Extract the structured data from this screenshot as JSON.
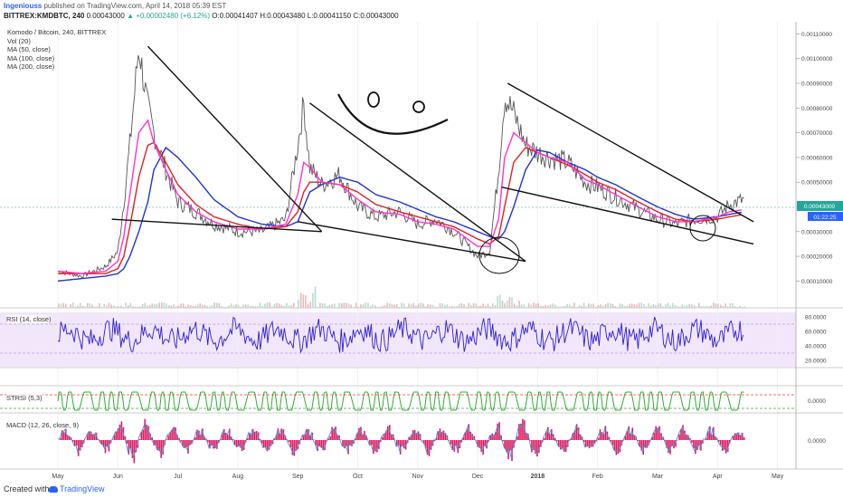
{
  "header": {
    "author": "Ingeniouss",
    "published": "published on TradingView.com, April 14, 2018 05:39 EST",
    "symbol": "BITTREX:KMDBTC, 240",
    "price": "0.00043000",
    "change": "▲ +0.00002480 (+6.12%)",
    "open": "O:0.00041407",
    "high": "H:0.00043480",
    "low": "L:0.00041150",
    "close": "C:0.00043000"
  },
  "footer": {
    "created": "Created with",
    "brand": "TradingView"
  },
  "legend": [
    "Komodo / Bitcoin, 240, BITTREX",
    "Vol (20)",
    "MA (50, close)",
    "MA (100, close)",
    "MA (200, close)"
  ],
  "panes": {
    "rsi": "RSI (14, close)",
    "stoch": "STRSI (5,3)",
    "macd": "MACD (12, 26, close, 9)"
  },
  "price_badges": {
    "last": "0.00043000",
    "timer": "01:22:25"
  },
  "colors": {
    "price": "#555555",
    "ma50": "#ff33cc",
    "ma100": "#dd2222",
    "ma200": "#2233cc",
    "rsi": "#2a1fcf",
    "stoch": "#33aa33",
    "macd_hist": "#e0195e",
    "macd_line": "#4a90d9",
    "badge": "#26a69a",
    "timer": "#2962ff"
  },
  "chart_data": {
    "type": "line",
    "x_labels": [
      "May",
      "Jun",
      "Jul",
      "Aug",
      "Sep",
      "Oct",
      "Nov",
      "Dec",
      "2018",
      "Feb",
      "Mar",
      "Apr",
      "May"
    ],
    "x_label_index": [
      0,
      1,
      2,
      3,
      4,
      5,
      6,
      7,
      8,
      9,
      10,
      11,
      12
    ],
    "price_axis": {
      "ticks": [
        "0.00110000",
        "0.00100000",
        "0.00090000",
        "0.00080000",
        "0.00070000",
        "0.00060000",
        "0.00050000",
        "0.00040000",
        "0.00030000",
        "0.00020000",
        "0.00010000"
      ],
      "range": [
        5e-05,
        0.00112
      ]
    },
    "price_series_month_index": [
      0.0,
      0.4,
      0.8,
      1.0,
      1.1,
      1.2,
      1.35,
      1.5,
      1.6,
      1.8,
      2.0,
      2.3,
      2.6,
      3.0,
      3.4,
      3.8,
      4.0,
      4.1,
      4.2,
      4.4,
      4.7,
      5.0,
      5.3,
      5.7,
      6.0,
      6.3,
      6.6,
      7.0,
      7.2,
      7.35,
      7.45,
      7.6,
      7.8,
      8.0,
      8.2,
      8.5,
      8.8,
      9.0,
      9.3,
      9.6,
      10.0,
      10.3,
      10.6,
      11.0,
      11.2,
      11.45
    ],
    "price_series": [
      0.00014,
      0.00012,
      0.00016,
      0.00022,
      0.00042,
      0.00065,
      0.00105,
      0.0008,
      0.0007,
      0.00055,
      0.00042,
      0.00038,
      0.00033,
      0.0003,
      0.0003,
      0.00035,
      0.00065,
      0.00082,
      0.00056,
      0.00049,
      0.00053,
      0.0004,
      0.00036,
      0.00038,
      0.00033,
      0.00035,
      0.0003,
      0.0002,
      0.00022,
      0.00055,
      0.00085,
      0.00078,
      0.00065,
      0.00062,
      0.0006,
      0.00058,
      0.0005,
      0.00048,
      0.00044,
      0.0004,
      0.00035,
      0.00033,
      0.00035,
      0.00036,
      0.00041,
      0.00043
    ],
    "ma50": [
      0.00014,
      0.00013,
      0.00014,
      0.00018,
      0.00028,
      0.00045,
      0.0007,
      0.00075,
      0.00066,
      0.00055,
      0.00045,
      0.00038,
      0.00034,
      0.00031,
      0.00031,
      0.00033,
      0.00045,
      0.00058,
      0.00056,
      0.0005,
      0.00049,
      0.00043,
      0.00038,
      0.00037,
      0.00034,
      0.00033,
      0.00031,
      0.00024,
      0.00024,
      0.00035,
      0.0006,
      0.0007,
      0.00066,
      0.00062,
      0.0006,
      0.00058,
      0.00051,
      0.00049,
      0.00045,
      0.00041,
      0.00036,
      0.00034,
      0.00034,
      0.00036,
      0.00038,
      0.00039
    ],
    "ma100": [
      0.00013,
      0.00013,
      0.00013,
      0.00015,
      0.0002,
      0.00032,
      0.00052,
      0.00065,
      0.00066,
      0.00058,
      0.00049,
      0.00041,
      0.00036,
      0.00033,
      0.00031,
      0.00032,
      0.00038,
      0.00046,
      0.0005,
      0.0005,
      0.00049,
      0.00046,
      0.00041,
      0.00038,
      0.00036,
      0.00034,
      0.00032,
      0.00027,
      0.00025,
      0.00028,
      0.0004,
      0.00058,
      0.00064,
      0.00062,
      0.0006,
      0.00057,
      0.00053,
      0.0005,
      0.00047,
      0.00043,
      0.00038,
      0.00035,
      0.00034,
      0.00035,
      0.00036,
      0.00037
    ],
    "ma200": [
      0.0001,
      0.00011,
      0.00012,
      0.00013,
      0.00015,
      0.0002,
      0.0003,
      0.00042,
      0.00055,
      0.00064,
      0.0006,
      0.00052,
      0.00043,
      0.00036,
      0.00033,
      0.00032,
      0.00034,
      0.0004,
      0.00046,
      0.00049,
      0.00052,
      0.0005,
      0.00045,
      0.00042,
      0.00039,
      0.00036,
      0.00034,
      0.0003,
      0.00028,
      0.00027,
      0.0003,
      0.0004,
      0.00055,
      0.00063,
      0.00062,
      0.00058,
      0.00055,
      0.00052,
      0.00049,
      0.00045,
      0.0004,
      0.00037,
      0.00035,
      0.00036,
      0.00037,
      0.00038
    ],
    "trendlines": [
      {
        "from": [
          1.5,
          0.00105
        ],
        "to": [
          4.4,
          0.0003
        ]
      },
      {
        "from": [
          0.9,
          0.00035
        ],
        "to": [
          4.4,
          0.0003
        ]
      },
      {
        "from": [
          4.2,
          0.00082
        ],
        "to": [
          7.8,
          0.00018
        ]
      },
      {
        "from": [
          4.0,
          0.00034
        ],
        "to": [
          7.8,
          0.00018
        ]
      },
      {
        "from": [
          7.5,
          0.0009
        ],
        "to": [
          11.6,
          0.00034
        ]
      },
      {
        "from": [
          7.4,
          0.00048
        ],
        "to": [
          11.6,
          0.00025
        ]
      }
    ],
    "rsi_axis": {
      "ticks": [
        "80.0000",
        "60.0000",
        "40.0000",
        "20.0000"
      ],
      "range": [
        10,
        90
      ],
      "band": [
        30,
        70
      ]
    },
    "stoch_axis": {
      "ticks": [
        "0.0000"
      ]
    },
    "macd_axis": {
      "ticks": [
        "0.0000"
      ]
    }
  }
}
